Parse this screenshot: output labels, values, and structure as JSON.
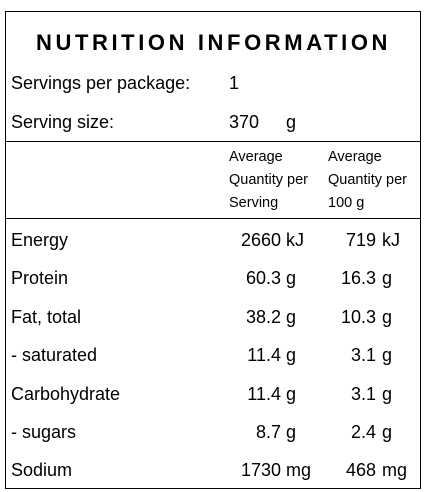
{
  "title": "NUTRITION INFORMATION",
  "servings_label": "Servings per package:",
  "servings_value": "1",
  "serving_size_label": "Serving size:",
  "serving_size_value": "370",
  "serving_size_unit": "g",
  "col_per_serving": [
    "Average",
    "Quantity per",
    "Serving"
  ],
  "col_per_100g": [
    "Average",
    "Quantity per",
    "100 g"
  ],
  "rows": [
    {
      "label": "Energy",
      "serving": "2660",
      "serving_unit": "kJ",
      "per100": "719",
      "per100_unit": "kJ"
    },
    {
      "label": "Protein",
      "serving": "60.3",
      "serving_unit": "g",
      "per100": "16.3",
      "per100_unit": "g"
    },
    {
      "label": "Fat, total",
      "serving": "38.2",
      "serving_unit": "g",
      "per100": "10.3",
      "per100_unit": "g"
    },
    {
      "label": "- saturated",
      "serving": "11.4",
      "serving_unit": "g",
      "per100": "3.1",
      "per100_unit": "g"
    },
    {
      "label": "Carbohydrate",
      "serving": "11.4",
      "serving_unit": "g",
      "per100": "3.1",
      "per100_unit": "g"
    },
    {
      "label": "- sugars",
      "serving": "8.7",
      "serving_unit": "g",
      "per100": "2.4",
      "per100_unit": "g"
    },
    {
      "label": "Sodium",
      "serving": "1730",
      "serving_unit": "mg",
      "per100": "468",
      "per100_unit": "mg"
    }
  ]
}
